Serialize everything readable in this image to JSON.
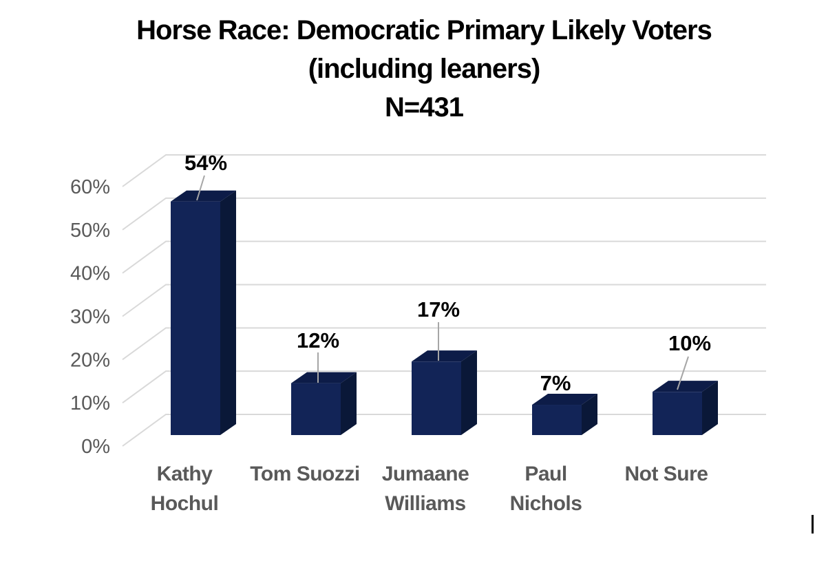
{
  "title": {
    "line1": "Horse Race: Democratic Primary Likely Voters",
    "line2": "(including leaners)",
    "line3": "N=431"
  },
  "chart_data": {
    "type": "bar",
    "style": "3d-column",
    "title": "Horse Race: Democratic Primary Likely Voters (including leaners) N=431",
    "categories": [
      "Kathy Hochul",
      "Tom Suozzi",
      "Jumaane Williams",
      "Paul Nichols",
      "Not Sure"
    ],
    "category_lines": [
      [
        "Kathy",
        "Hochul"
      ],
      [
        "Tom Suozzi"
      ],
      [
        "Jumaane",
        "Williams"
      ],
      [
        "Paul",
        "Nichols"
      ],
      [
        "Not Sure"
      ]
    ],
    "values": [
      54,
      12,
      17,
      7,
      10
    ],
    "data_labels": [
      "54%",
      "12%",
      "17%",
      "7%",
      "10%"
    ],
    "xlabel": "",
    "ylabel": "",
    "y_ticks": [
      "0%",
      "10%",
      "20%",
      "30%",
      "40%",
      "50%",
      "60%"
    ],
    "y_tick_step": 10,
    "ylim": [
      0,
      60
    ],
    "grid": true,
    "legend": false,
    "colors": {
      "bar_front": "#122457",
      "bar_side": "#0a1838",
      "bar_top": "#0d1c48",
      "gridline": "#d9d9d9",
      "leader_line": "#a6a6a6",
      "axis_label": "#595959",
      "category_label": "#595959",
      "data_label": "#000000",
      "title": "#000000",
      "background": "#ffffff"
    }
  },
  "artifacts": {
    "text_cursor": "|"
  }
}
